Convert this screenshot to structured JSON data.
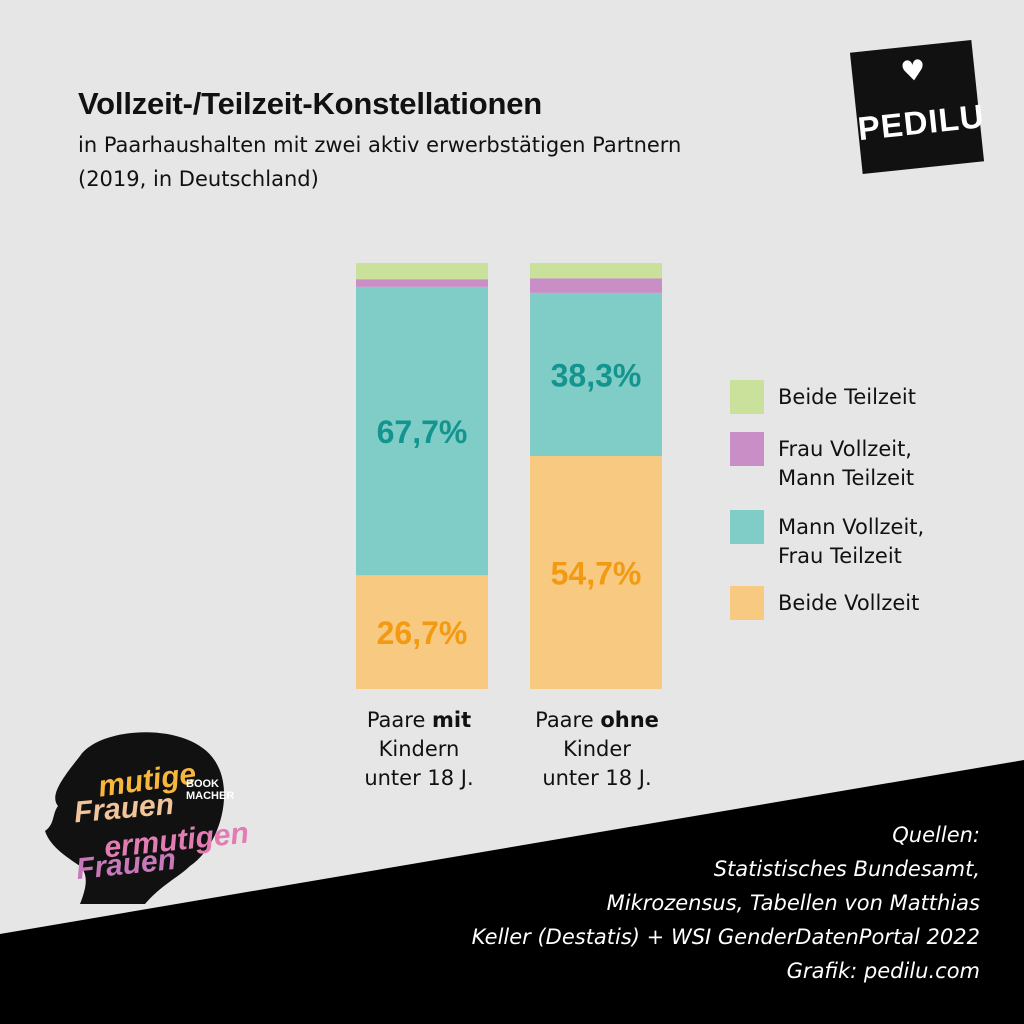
{
  "header": {
    "title": "Vollzeit-/Teilzeit-Konstellationen",
    "subtitle_line1": "in Paarhaushalten mit zwei aktiv erwerbstätigen Partnern",
    "subtitle_line2": "(2019, in Deutschland)"
  },
  "logo": {
    "text": "PEDILU"
  },
  "chart_data": {
    "type": "bar",
    "stacked": true,
    "categories": [
      "Paare mit Kindern unter 18 J.",
      "Paare ohne Kinder unter 18 J."
    ],
    "category_labels": [
      {
        "pre": "Paare ",
        "bold": "mit",
        "line2": "Kindern",
        "line3": "unter 18 J."
      },
      {
        "pre": "Paare ",
        "bold": "ohne",
        "line2": "Kinder",
        "line3": "unter 18 J."
      }
    ],
    "series": [
      {
        "name": "Beide Vollzeit",
        "values": [
          26.7,
          54.7
        ],
        "labels": [
          "26,7%",
          "54,7%"
        ],
        "color": "#f8c981",
        "label_color": "#f39a13"
      },
      {
        "name": "Mann Vollzeit, Frau Teilzeit",
        "values": [
          67.7,
          38.3
        ],
        "labels": [
          "67,7%",
          "38,3%"
        ],
        "color": "#80ccc7",
        "label_color": "#14948e"
      },
      {
        "name": "Frau Vollzeit, Mann Teilzeit",
        "values": [
          1.8,
          3.4
        ],
        "labels": [
          "",
          ""
        ],
        "color": "#c98ec6",
        "label_color": ""
      },
      {
        "name": "Beide Teilzeit",
        "values": [
          3.8,
          3.6
        ],
        "labels": [
          "",
          ""
        ],
        "color": "#c9e19a",
        "label_color": ""
      }
    ],
    "ylim": [
      0,
      100
    ],
    "legend": {
      "placement": "right",
      "order": [
        "Beide Teilzeit",
        "Frau Vollzeit, Mann Teilzeit",
        "Mann Vollzeit, Frau Teilzeit",
        "Beide Vollzeit"
      ],
      "lines": [
        [
          "Beide Teilzeit"
        ],
        [
          "Frau Vollzeit,",
          "Mann Teilzeit"
        ],
        [
          "Mann Vollzeit,",
          "Frau Teilzeit"
        ],
        [
          "Beide Vollzeit"
        ]
      ]
    }
  },
  "sources": {
    "lines": [
      "Quellen:",
      "Statistisches Bundesamt,",
      "Mikrozensus, Tabellen von Matthias",
      "Keller (Destatis) + WSI GenderDatenPortal 2022",
      "Grafik: pedilu.com"
    ]
  },
  "badge": {
    "lines": [
      "mutige",
      "Frauen",
      "ermutigen",
      "Frauen"
    ],
    "tag": "BOOK MACHER"
  },
  "colors": {
    "background": "#e6e6e6",
    "band": "#000000"
  }
}
